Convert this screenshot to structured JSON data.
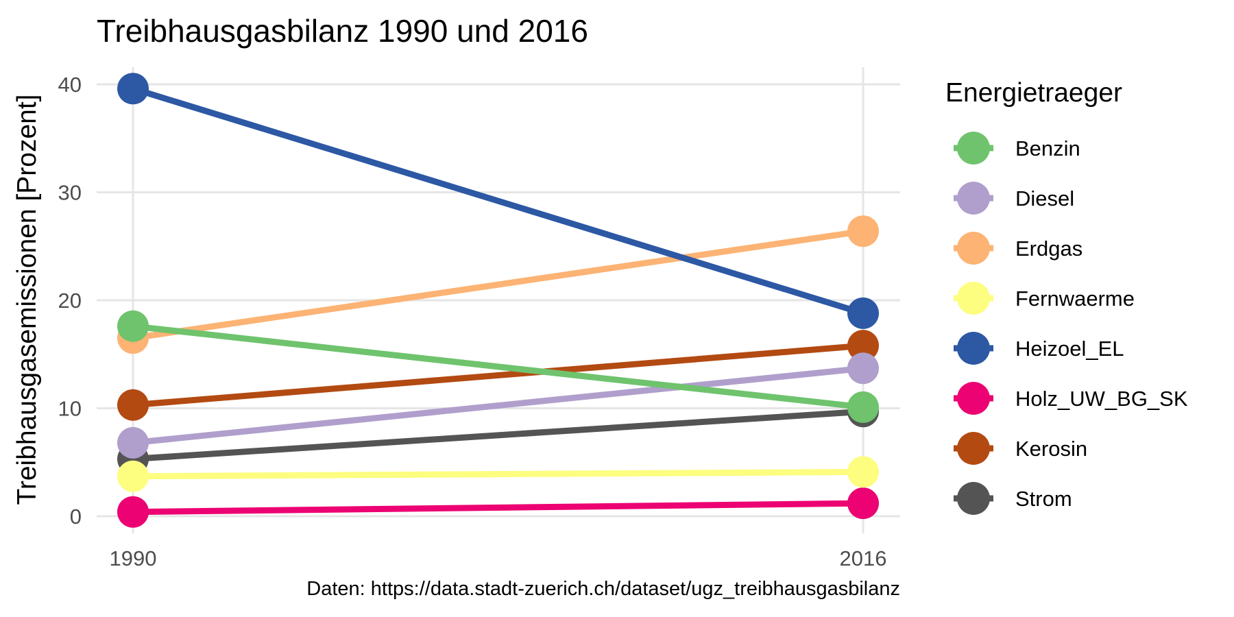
{
  "chart_data": {
    "type": "line",
    "title": "Treibhausgasbilanz 1990 und 2016",
    "xlabel": "",
    "ylabel": "Treibhausgasemissionen [Prozent]",
    "caption": "Daten: https://data.stadt-zuerich.ch/dataset/ugz_treibhausgasbilanz",
    "x": [
      "1990",
      "2016"
    ],
    "ylim": [
      0,
      41
    ],
    "yticks": [
      0,
      10,
      20,
      30,
      40
    ],
    "grid": true,
    "legend": {
      "title": "Energietraeger",
      "position": "right"
    },
    "series": [
      {
        "name": "Benzin",
        "values": [
          17.6,
          10.1
        ],
        "color": "#6fc36d"
      },
      {
        "name": "Diesel",
        "values": [
          6.8,
          13.7
        ],
        "color": "#b09fcc"
      },
      {
        "name": "Erdgas",
        "values": [
          16.5,
          26.4
        ],
        "color": "#fcb374"
      },
      {
        "name": "Fernwaerme",
        "values": [
          3.7,
          4.1
        ],
        "color": "#fdfd80"
      },
      {
        "name": "Heizoel_EL",
        "values": [
          39.6,
          18.8
        ],
        "color": "#2c58a4"
      },
      {
        "name": "Holz_UW_BG_SK",
        "values": [
          0.4,
          1.2
        ],
        "color": "#ec0272"
      },
      {
        "name": "Kerosin",
        "values": [
          10.3,
          15.8
        ],
        "color": "#b34a12"
      },
      {
        "name": "Strom",
        "values": [
          5.3,
          9.7
        ],
        "color": "#545454"
      }
    ],
    "draw_order": [
      "Strom",
      "Kerosin",
      "Holz_UW_BG_SK",
      "Fernwaerme",
      "Diesel",
      "Erdgas",
      "Benzin",
      "Heizoel_EL"
    ]
  }
}
